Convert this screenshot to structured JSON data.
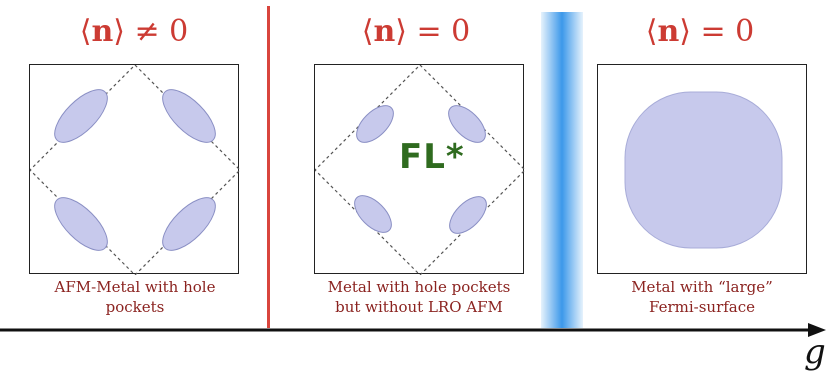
{
  "panels": [
    {
      "heading_pre": "⟨",
      "heading_symbol": "n",
      "heading_post": "⟩ ≠ 0",
      "caption_line1": "AFM-Metal with hole",
      "caption_line2": "pockets"
    },
    {
      "heading_pre": "⟨",
      "heading_symbol": "n",
      "heading_post": "⟩ = 0",
      "caption_line1": "Metal with hole pockets",
      "caption_line2": "but without LRO AFM",
      "center_label": "FL*"
    },
    {
      "heading_pre": "⟨",
      "heading_symbol": "n",
      "heading_post": "⟩ = 0",
      "caption_line1": "Metal with “large”",
      "caption_line2": "Fermi-surface"
    }
  ],
  "axis": {
    "label": "g"
  },
  "colors": {
    "heading": "#cc3b33",
    "caption": "#8b2320",
    "pocket_fill": "#c7c9ec",
    "pocket_stroke": "#8a8fc4",
    "divider": "#d9453d",
    "band": "#3c98ea",
    "fl_label": "#2f6b1f"
  }
}
